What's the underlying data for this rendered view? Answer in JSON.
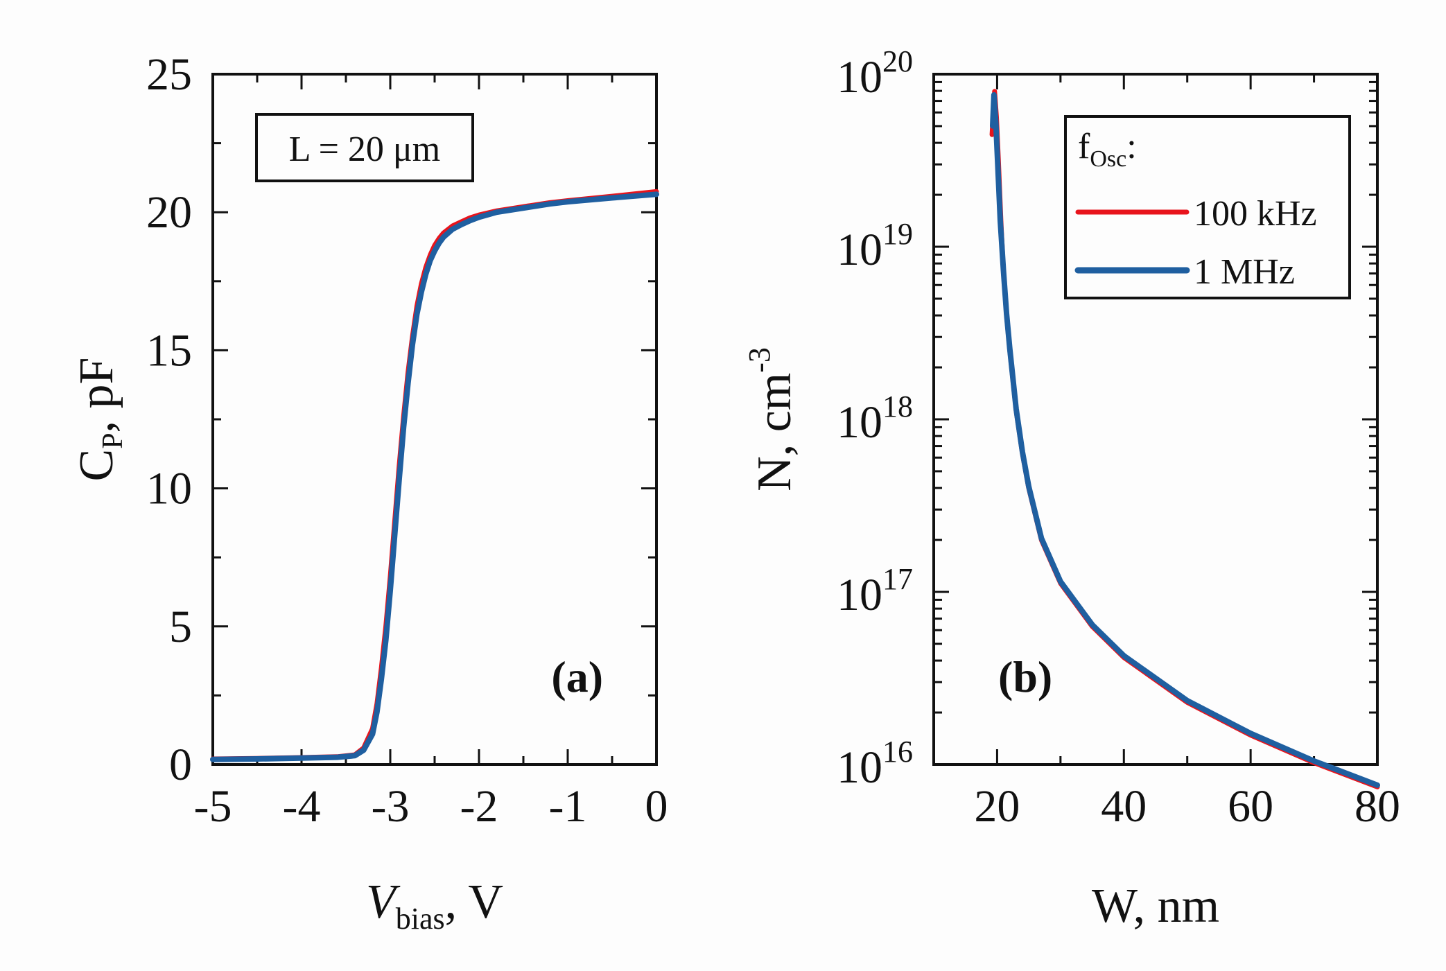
{
  "chart_data": [
    {
      "type": "line",
      "panel_label": "(a)",
      "annotation": "L = 20 μm",
      "xlabel": {
        "main": "V",
        "sub": "bias",
        "suffix": ", V"
      },
      "ylabel": {
        "main": "C",
        "sub": "P",
        "suffix": ", pF"
      },
      "xlim": [
        -5,
        0
      ],
      "ylim": [
        0,
        25
      ],
      "xticks": [
        -5,
        -4,
        -3,
        -2,
        -1,
        0
      ],
      "yticks": [
        0,
        5,
        10,
        15,
        20,
        25
      ],
      "series": [
        {
          "name": "100 kHz",
          "color": "#e8141c",
          "x": [
            -5.0,
            -4.5,
            -4.0,
            -3.6,
            -3.4,
            -3.3,
            -3.2,
            -3.15,
            -3.1,
            -3.05,
            -3.0,
            -2.95,
            -2.9,
            -2.85,
            -2.8,
            -2.75,
            -2.7,
            -2.65,
            -2.6,
            -2.55,
            -2.5,
            -2.45,
            -2.4,
            -2.3,
            -2.2,
            -2.1,
            -2.0,
            -1.8,
            -1.5,
            -1.2,
            -1.0,
            -0.5,
            0.0
          ],
          "y": [
            0.2,
            0.22,
            0.25,
            0.28,
            0.35,
            0.6,
            1.3,
            2.2,
            3.5,
            5.0,
            6.8,
            8.8,
            10.8,
            12.6,
            14.2,
            15.5,
            16.6,
            17.4,
            18.0,
            18.45,
            18.8,
            19.05,
            19.25,
            19.5,
            19.65,
            19.8,
            19.9,
            20.05,
            20.2,
            20.35,
            20.42,
            20.58,
            20.75
          ]
        },
        {
          "name": "1 MHz",
          "color": "#1f5fa0",
          "x": [
            -5.0,
            -4.5,
            -4.0,
            -3.6,
            -3.4,
            -3.3,
            -3.2,
            -3.15,
            -3.1,
            -3.05,
            -3.0,
            -2.95,
            -2.9,
            -2.85,
            -2.8,
            -2.75,
            -2.7,
            -2.65,
            -2.6,
            -2.55,
            -2.5,
            -2.45,
            -2.4,
            -2.3,
            -2.2,
            -2.1,
            -2.0,
            -1.8,
            -1.5,
            -1.2,
            -1.0,
            -0.5,
            0.0
          ],
          "y": [
            0.18,
            0.2,
            0.23,
            0.26,
            0.32,
            0.52,
            1.1,
            1.9,
            3.1,
            4.5,
            6.3,
            8.3,
            10.3,
            12.2,
            13.8,
            15.2,
            16.3,
            17.1,
            17.75,
            18.25,
            18.6,
            18.88,
            19.1,
            19.38,
            19.55,
            19.7,
            19.82,
            20.0,
            20.15,
            20.3,
            20.38,
            20.52,
            20.65
          ]
        }
      ]
    },
    {
      "type": "line",
      "panel_label": "(b)",
      "yscale": "log",
      "xlabel": {
        "main": "W, nm"
      },
      "ylabel": {
        "main": "N, cm",
        "sup": "-3"
      },
      "xlim": [
        10,
        80
      ],
      "ylim_exp": [
        16,
        20
      ],
      "xticks": [
        20,
        40,
        60,
        80
      ],
      "yticks_exp": [
        16,
        17,
        18,
        19,
        20
      ],
      "ytick_base": "10",
      "yticks_exp_labels": [
        "16",
        "17",
        "18",
        "19",
        "20"
      ],
      "legend": {
        "title_main": "f",
        "title_sub": "Osc",
        "title_suffix": ":",
        "location": "top-right"
      },
      "series": [
        {
          "name": "100 kHz",
          "color": "#e8141c",
          "x": [
            19.2,
            19.6,
            19.9,
            20.2,
            20.6,
            21.0,
            21.5,
            22.0,
            23.0,
            24.0,
            25.0,
            27.0,
            30.0,
            35.0,
            40.0,
            50.0,
            60.0,
            70.0,
            80.0
          ],
          "logy": [
            19.65,
            19.9,
            19.75,
            19.5,
            19.15,
            18.85,
            18.6,
            18.4,
            18.05,
            17.8,
            17.6,
            17.3,
            17.05,
            16.8,
            16.62,
            16.36,
            16.17,
            16.01,
            15.87
          ]
        },
        {
          "name": "1 MHz",
          "color": "#1f5fa0",
          "x": [
            19.3,
            19.5,
            19.8,
            20.1,
            20.5,
            21.0,
            21.5,
            22.0,
            23.0,
            24.0,
            25.0,
            27.0,
            30.0,
            35.0,
            40.0,
            50.0,
            60.0,
            70.0,
            80.0
          ],
          "logy": [
            19.7,
            19.88,
            19.72,
            19.48,
            19.15,
            18.86,
            18.61,
            18.41,
            18.06,
            17.81,
            17.61,
            17.31,
            17.06,
            16.81,
            16.63,
            16.37,
            16.18,
            16.02,
            15.88
          ]
        }
      ]
    }
  ]
}
